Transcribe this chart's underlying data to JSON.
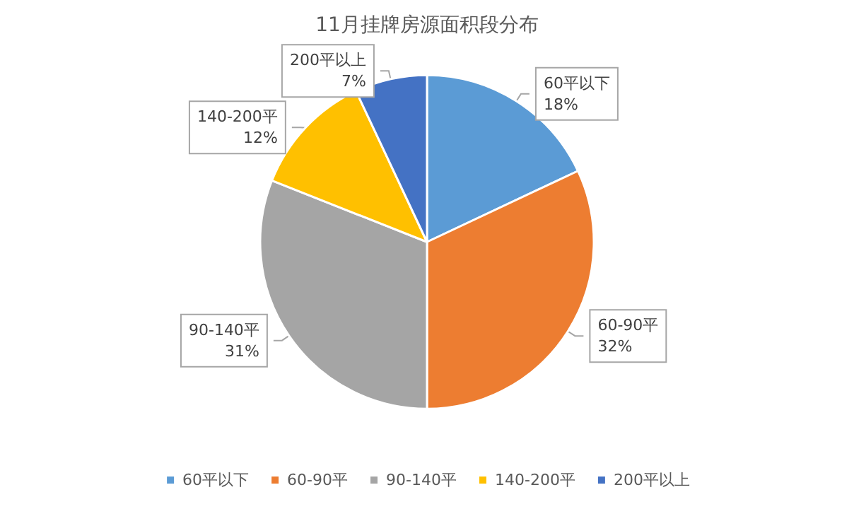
{
  "chart_data": {
    "type": "pie",
    "title": "11月挂牌房源面积段分布",
    "categories": [
      "60平以下",
      "60-90平",
      "90-140平",
      "140-200平",
      "200平以上"
    ],
    "values": [
      18,
      32,
      31,
      12,
      7
    ],
    "value_labels": [
      "18%",
      "32%",
      "31%",
      "12%",
      "7%"
    ],
    "colors": [
      "#5b9bd5",
      "#ed7d31",
      "#a5a5a5",
      "#ffc000",
      "#4472c4"
    ],
    "legend": "bottom"
  }
}
